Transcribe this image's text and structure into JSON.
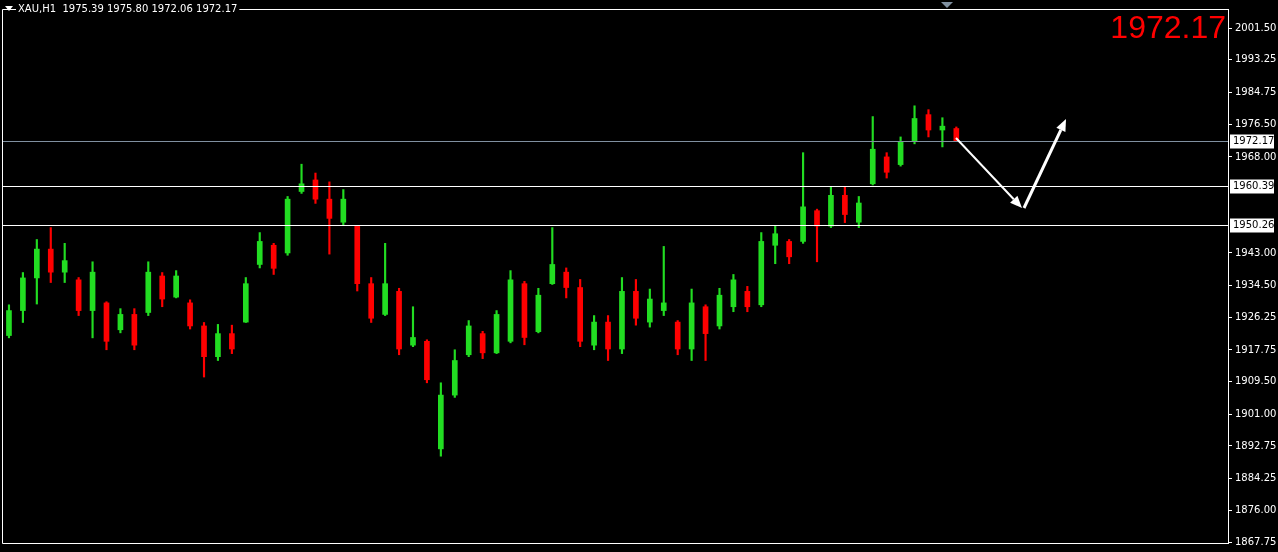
{
  "chart_data": {
    "type": "candlestick",
    "title": "XAU,H1  1975.39 1975.80 1972.06 1972.17",
    "annotations": [
      "1972.17"
    ],
    "categories": [
      null,
      null,
      null,
      null,
      null,
      null,
      null,
      null,
      null,
      null,
      null,
      null,
      null,
      null,
      null,
      null,
      null,
      null,
      null,
      null,
      null,
      null,
      null,
      null,
      null,
      null,
      null,
      null,
      null,
      null,
      null,
      null,
      null,
      null,
      null,
      null,
      null,
      null,
      null,
      null,
      null,
      null,
      null,
      null,
      null,
      null,
      null,
      null,
      null,
      null,
      null,
      null,
      null,
      null,
      null,
      null,
      null,
      null,
      null,
      null,
      null,
      null,
      null,
      null,
      null,
      null,
      null,
      null,
      null,
      null,
      null,
      null,
      null,
      null,
      null,
      null,
      null,
      null,
      null,
      null,
      null,
      null,
      null,
      null,
      null,
      null,
      null,
      null
    ],
    "ohlc": [
      [
        1921.5,
        1929.5,
        1920.9,
        1928.0
      ],
      [
        1928.0,
        1937.9,
        1924.9,
        1936.5
      ],
      [
        1936.5,
        1946.5,
        1929.7,
        1944.0
      ],
      [
        1944.0,
        1949.6,
        1935.3,
        1938.0
      ],
      [
        1938.0,
        1945.5,
        1935.3,
        1941.0
      ],
      [
        1936.0,
        1936.6,
        1926.7,
        1928.0
      ],
      [
        1928.0,
        1940.7,
        1920.9,
        1938.0
      ],
      [
        1930.0,
        1930.3,
        1917.8,
        1920.0
      ],
      [
        1923.0,
        1928.5,
        1922.2,
        1927.0
      ],
      [
        1927.0,
        1928.5,
        1917.8,
        1919.0
      ],
      [
        1927.5,
        1940.7,
        1926.7,
        1938.0
      ],
      [
        1937.0,
        1937.9,
        1929.0,
        1931.0
      ],
      [
        1931.5,
        1938.4,
        1931.3,
        1937.0
      ],
      [
        1930.0,
        1930.8,
        1923.2,
        1924.0
      ],
      [
        1924.0,
        1924.9,
        1910.7,
        1916.0
      ],
      [
        1916.0,
        1924.4,
        1915.0,
        1922.0
      ],
      [
        1922.0,
        1924.2,
        1916.8,
        1918.0
      ],
      [
        1925.0,
        1936.6,
        1924.9,
        1935.0
      ],
      [
        1940.0,
        1948.3,
        1939.1,
        1946.0
      ],
      [
        1945.0,
        1945.5,
        1937.4,
        1939.0
      ],
      [
        1943.0,
        1957.7,
        1942.4,
        1957.0
      ],
      [
        1959.0,
        1966.1,
        1958.5,
        1961.0
      ],
      [
        1962.0,
        1963.8,
        1955.9,
        1957.0
      ],
      [
        1957.0,
        1961.5,
        1942.7,
        1952.0
      ],
      [
        1951.0,
        1959.5,
        1950.1,
        1957.0
      ],
      [
        1950.0,
        1950.1,
        1933.1,
        1935.0
      ],
      [
        1935.0,
        1936.6,
        1924.9,
        1926.0
      ],
      [
        1927.0,
        1945.5,
        1926.7,
        1935.0
      ],
      [
        1933.0,
        1933.8,
        1916.5,
        1918.0
      ],
      [
        1919.0,
        1929.0,
        1918.6,
        1921.0
      ],
      [
        1920.0,
        1920.4,
        1909.2,
        1910.0
      ],
      [
        1892.0,
        1909.2,
        1890.1,
        1906.0
      ],
      [
        1906.0,
        1917.8,
        1905.4,
        1915.0
      ],
      [
        1916.5,
        1925.4,
        1916.0,
        1924.0
      ],
      [
        1922.0,
        1922.6,
        1915.5,
        1917.0
      ],
      [
        1917.0,
        1928.0,
        1916.8,
        1927.0
      ],
      [
        1920.0,
        1938.4,
        1919.6,
        1936.0
      ],
      [
        1935.0,
        1935.6,
        1919.1,
        1921.0
      ],
      [
        1922.5,
        1933.8,
        1922.2,
        1932.0
      ],
      [
        1935.0,
        1949.6,
        1934.8,
        1940.0
      ],
      [
        1938.0,
        1939.1,
        1931.3,
        1934.0
      ],
      [
        1934.0,
        1936.1,
        1918.6,
        1920.0
      ],
      [
        1919.0,
        1926.7,
        1917.8,
        1925.0
      ],
      [
        1925.0,
        1926.7,
        1915.0,
        1918.0
      ],
      [
        1918.0,
        1936.6,
        1916.8,
        1933.0
      ],
      [
        1933.0,
        1936.1,
        1924.2,
        1926.0
      ],
      [
        1925.0,
        1933.6,
        1923.7,
        1931.0
      ],
      [
        1928.0,
        1944.7,
        1926.7,
        1930.0
      ],
      [
        1925.0,
        1925.4,
        1916.5,
        1918.0
      ],
      [
        1918.0,
        1933.6,
        1915.0,
        1930.0
      ],
      [
        1929.0,
        1929.5,
        1915.0,
        1922.0
      ],
      [
        1924.0,
        1933.8,
        1923.2,
        1932.0
      ],
      [
        1929.0,
        1937.4,
        1927.7,
        1936.0
      ],
      [
        1933.0,
        1934.3,
        1927.7,
        1929.0
      ],
      [
        1929.5,
        1948.3,
        1929.0,
        1946.0
      ],
      [
        1945.0,
        1950.1,
        1940.2,
        1948.0
      ],
      [
        1946.0,
        1946.5,
        1940.2,
        1942.0
      ],
      [
        1946.0,
        1969.1,
        1945.5,
        1955.0
      ],
      [
        1954.0,
        1954.4,
        1940.7,
        1950.0
      ],
      [
        1950.0,
        1960.2,
        1949.6,
        1958.0
      ],
      [
        1958.0,
        1960.2,
        1950.9,
        1953.0
      ],
      [
        1951.0,
        1957.7,
        1949.6,
        1956.0
      ],
      [
        1961.0,
        1978.5,
        1960.7,
        1970.0
      ],
      [
        1968.0,
        1969.1,
        1962.5,
        1964.0
      ],
      [
        1966.0,
        1973.2,
        1965.6,
        1972.0
      ],
      [
        1972.0,
        1981.3,
        1971.4,
        1978.0
      ],
      [
        1979.0,
        1980.3,
        1973.2,
        1975.0
      ],
      [
        1975.0,
        1978.2,
        1970.6,
        1976.0
      ],
      [
        1975.39,
        1975.8,
        1972.06,
        1972.17
      ],
      null,
      null,
      null,
      null,
      null,
      null,
      null,
      null,
      null,
      null,
      null,
      null,
      null,
      null,
      null,
      null,
      null,
      null,
      null
    ],
    "colors": [
      "#22dd22",
      "#22dd22",
      "#22dd22",
      "#ff0000",
      "#22dd22",
      "#ff0000",
      "#22dd22",
      "#ff0000",
      "#22dd22",
      "#ff0000",
      "#22dd22",
      "#ff0000",
      "#22dd22",
      "#ff0000",
      "#ff0000",
      "#22dd22",
      "#ff0000",
      "#22dd22",
      "#22dd22",
      "#ff0000",
      "#22dd22",
      "#22dd22",
      "#ff0000",
      "#ff0000",
      "#22dd22",
      "#ff0000",
      "#ff0000",
      "#22dd22",
      "#ff0000",
      "#22dd22",
      "#ff0000",
      "#22dd22",
      "#22dd22",
      "#22dd22",
      "#ff0000",
      "#22dd22",
      "#22dd22",
      "#ff0000",
      "#22dd22",
      "#22dd22",
      "#ff0000",
      "#ff0000",
      "#22dd22",
      "#ff0000",
      "#22dd22",
      "#ff0000",
      "#22dd22",
      "#22dd22",
      "#ff0000",
      "#22dd22",
      "#ff0000",
      "#22dd22",
      "#22dd22",
      "#ff0000",
      "#22dd22",
      "#22dd22",
      "#ff0000",
      "#22dd22",
      "#ff0000",
      "#22dd22",
      "#ff0000",
      "#22dd22",
      "#22dd22",
      "#ff0000",
      "#22dd22",
      "#22dd22",
      "#ff0000",
      "#22dd22",
      "#ff0000",
      null,
      null,
      null,
      null,
      null,
      null,
      null,
      null,
      null,
      null,
      null,
      null,
      null,
      null,
      null,
      null,
      null,
      null,
      null
    ],
    "ylim": [
      1867.5,
      2006.5
    ],
    "yticks": [
      {
        "value": 2001.5,
        "label": "2001.50"
      },
      1993.25,
      1984.75,
      {
        "value": 1976.5,
        "label": "1976.50"
      },
      {
        "value": 1968.0,
        "label": "1968.00"
      },
      {
        "value": 1943.0,
        "label": "1943.00"
      },
      {
        "value": 1934.5,
        "label": "1934.50"
      },
      1926.25,
      1917.75,
      {
        "value": 1909.5,
        "label": "1909.50"
      },
      {
        "value": 1901.0,
        "label": "1901.00"
      },
      1892.75,
      1884.25,
      {
        "value": 1876.0,
        "label": "1876.00"
      },
      1867.75
    ],
    "ref_lines": [
      {
        "axis": "y",
        "value": 1972.17,
        "label": "1972.17",
        "color": "#8090a0"
      },
      {
        "axis": "y",
        "value": 1960.39,
        "label": "1960.39",
        "color": "#ffffff"
      },
      {
        "axis": "y",
        "value": 1950.26,
        "label": "1950.26",
        "color": "#ffffff"
      }
    ],
    "tick_labels": "y",
    "legend": false
  }
}
